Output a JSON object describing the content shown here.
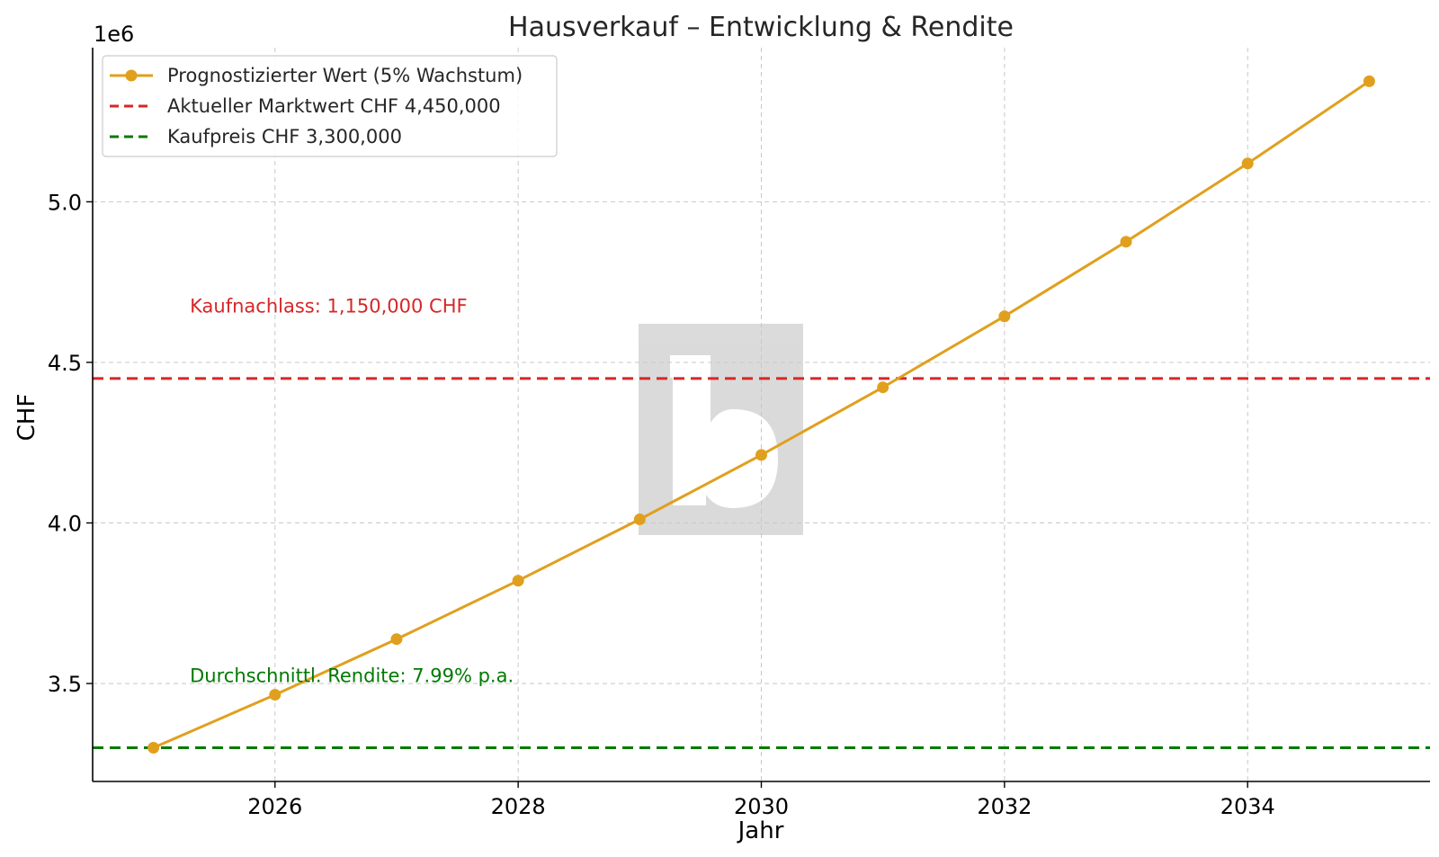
{
  "chart_data": {
    "type": "line",
    "title": "Hausverkauf – Entwicklung & Rendite",
    "xlabel": "Jahr",
    "ylabel": "CHF",
    "y_offset_label": "1e6",
    "xlim": [
      2024.5,
      2035.5
    ],
    "ylim": [
      3195000,
      5480000
    ],
    "x_ticks": [
      2026,
      2028,
      2030,
      2032,
      2034
    ],
    "y_ticks": [
      3.5,
      4.0,
      4.5,
      5.0
    ],
    "y_tick_multiplier": 1000000,
    "grid": true,
    "legend_position": "top-left",
    "series": [
      {
        "name": "Prognostizierter Wert (5% Wachstum)",
        "color": "#e0a01e",
        "marker": "circle",
        "x": [
          2025,
          2026,
          2027,
          2028,
          2029,
          2030,
          2031,
          2032,
          2033,
          2034,
          2035
        ],
        "values": [
          3300000,
          3465000,
          3638250,
          3820163,
          4011171,
          4211729,
          4422316,
          4643432,
          4875603,
          5119384,
          5375353
        ]
      }
    ],
    "reference_lines": [
      {
        "name": "Aktueller Marktwert CHF 4,450,000",
        "y": 4450000,
        "color": "#d62728",
        "style": "dashed"
      },
      {
        "name": "Kaufpreis CHF 3,300,000",
        "y": 3300000,
        "color": "#007a00",
        "style": "dashed"
      }
    ],
    "annotations": [
      {
        "text": "Kaufnachlass: 1,150,000 CHF",
        "x": 2025.3,
        "y": 4655000,
        "color": "#d62728"
      },
      {
        "text": "Durchschnittl. Rendite: 7.99% p.a.",
        "x": 2025.3,
        "y": 3505000,
        "color": "#007a00"
      }
    ]
  }
}
